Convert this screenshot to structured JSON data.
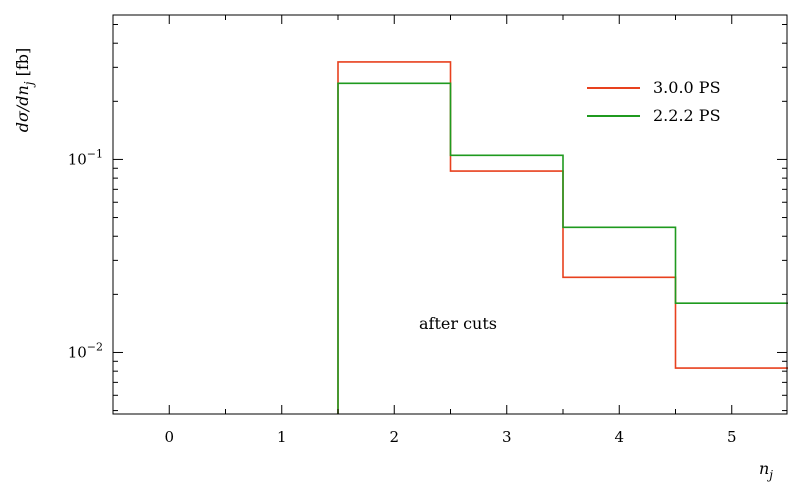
{
  "chart_data": {
    "type": "line",
    "xlabel": "n_j",
    "ylabel": "dσ/dn_j [fb]",
    "x_ticks": [
      "0",
      "1",
      "2",
      "3",
      "4",
      "5"
    ],
    "y_ticks": [
      {
        "base": "10",
        "exp": "−1",
        "value": 0.1
      },
      {
        "base": "10",
        "exp": "−2",
        "value": 0.01
      }
    ],
    "xlim": [
      -0.5,
      5.5
    ],
    "ylim": [
      0.0048,
      0.56
    ],
    "log_y": true,
    "bin_edges": [
      1.5,
      2.5,
      3.5,
      4.5,
      5.5
    ],
    "series": [
      {
        "name": "3.0.0 PS",
        "color": "#e8411e",
        "values": [
          0.32,
          0.087,
          0.0245,
          0.0083
        ]
      },
      {
        "name": "2.2.2 PS",
        "color": "#1f9a1f",
        "values": [
          0.248,
          0.105,
          0.0445,
          0.018
        ]
      }
    ],
    "annotation": "after cuts",
    "legend_position": "top-right"
  }
}
